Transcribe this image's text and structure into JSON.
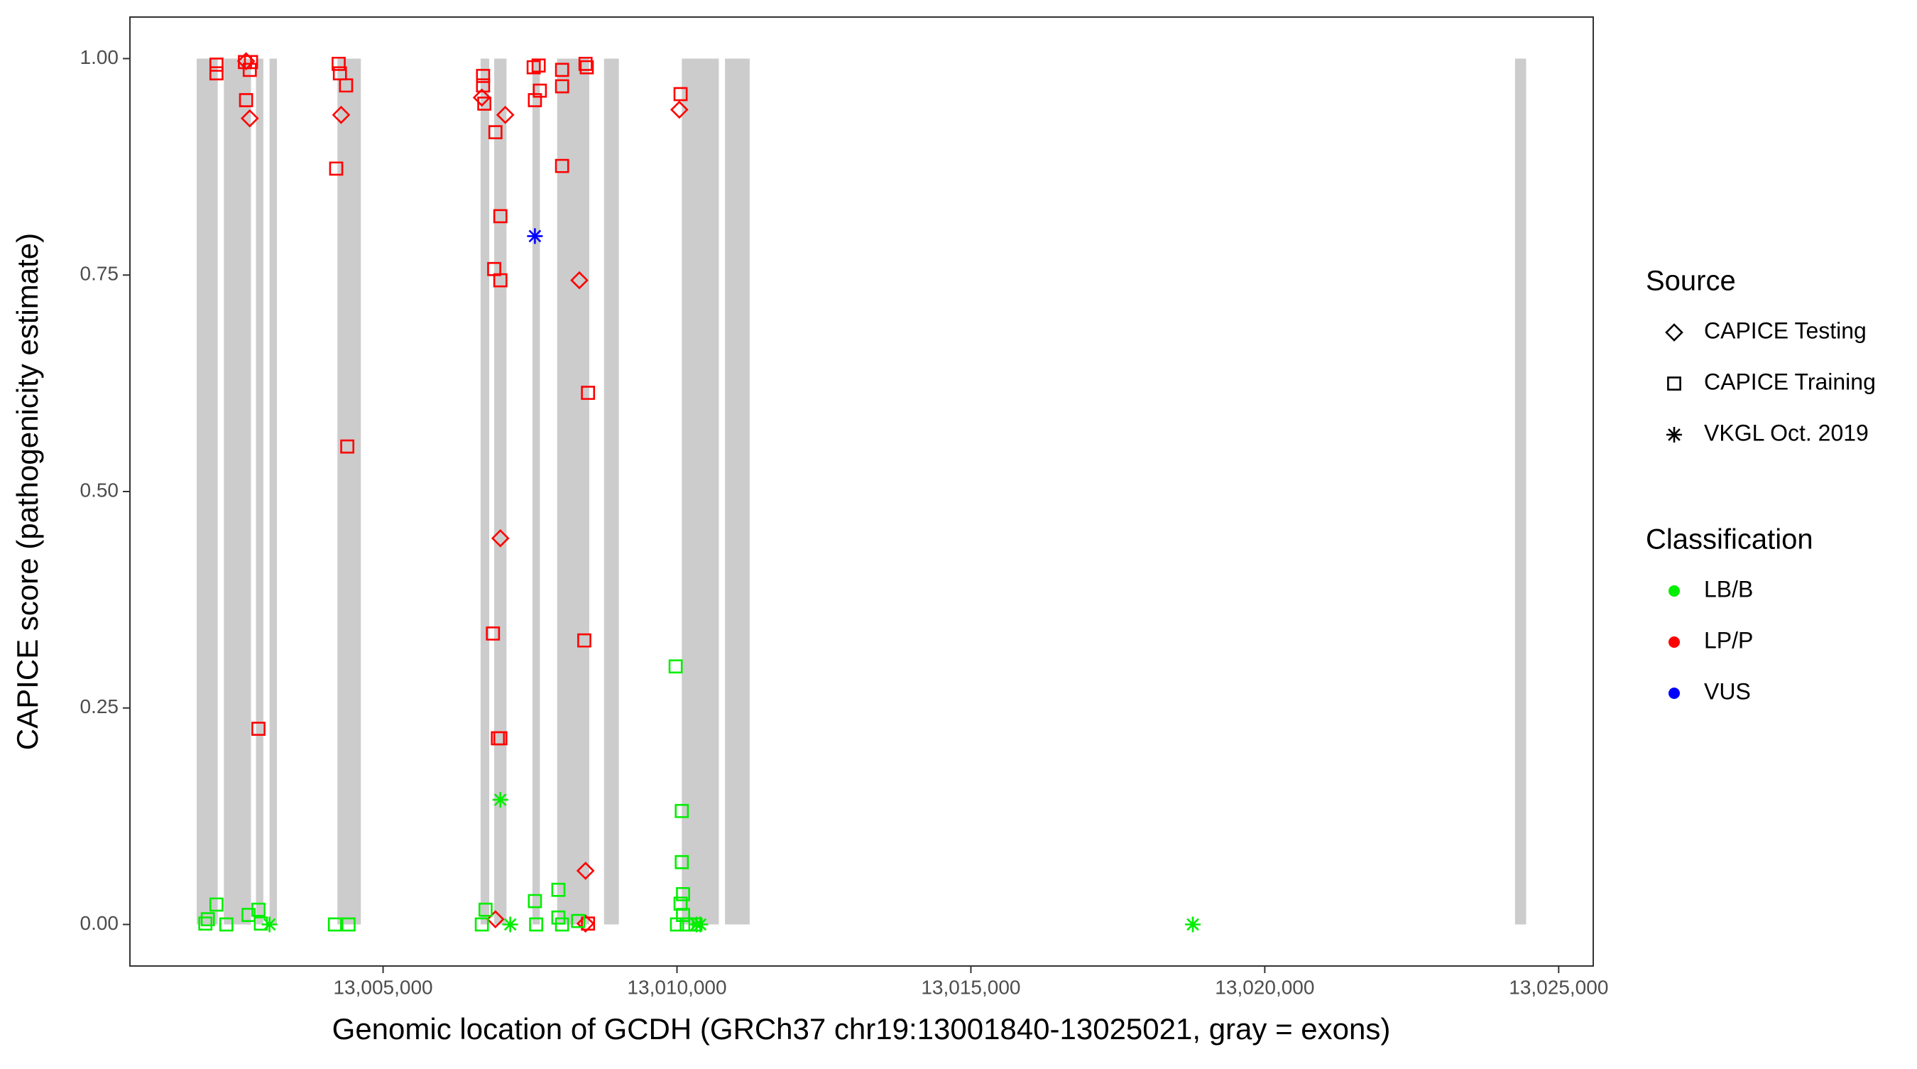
{
  "chart_data": {
    "type": "scatter",
    "xlabel": "Genomic location of GCDH (GRCh37 chr19:13001840-13025021, gray = exons)",
    "ylabel": "CAPICE score (pathogenicity estimate)",
    "xlim": [
      13000693,
      13025588
    ],
    "ylim": [
      -0.048,
      1.048
    ],
    "xticks": [
      {
        "value": 13005000,
        "label": "13,005,000"
      },
      {
        "value": 13010000,
        "label": "13,010,000"
      },
      {
        "value": 13015000,
        "label": "13,015,000"
      },
      {
        "value": 13020000,
        "label": "13,020,000"
      },
      {
        "value": 13025000,
        "label": "13,025,000"
      }
    ],
    "yticks": [
      {
        "value": 0,
        "label": "0.00"
      },
      {
        "value": 0.25,
        "label": "0.25"
      },
      {
        "value": 0.5,
        "label": "0.50"
      },
      {
        "value": 0.75,
        "label": "0.75"
      },
      {
        "value": 1,
        "label": "1.00"
      }
    ],
    "grid": false,
    "exon_color": "#cccccc",
    "exons": [
      [
        13001829,
        13002186
      ],
      [
        13002291,
        13002753
      ],
      [
        13002837,
        13002963
      ],
      [
        13003068,
        13003194
      ],
      [
        13004223,
        13004622
      ],
      [
        13006659,
        13006806
      ],
      [
        13006890,
        13007100
      ],
      [
        13007541,
        13007667
      ],
      [
        13007961,
        13008507
      ],
      [
        13008759,
        13009011
      ],
      [
        13010082,
        13010712
      ],
      [
        13010817,
        13011237
      ],
      [
        13024257,
        13024446
      ]
    ],
    "legends": [
      {
        "title": "Source",
        "items": [
          {
            "name": "CAPICE Testing",
            "shape": "diamond"
          },
          {
            "name": "CAPICE Training",
            "shape": "square"
          },
          {
            "name": "VKGL Oct. 2019",
            "shape": "asterisk"
          }
        ]
      },
      {
        "title": "Classification",
        "items": [
          {
            "name": "LB/B",
            "color": "#00ee00"
          },
          {
            "name": "LP/P",
            "color": "#ff0000"
          },
          {
            "name": "VUS",
            "color": "#0000ff"
          }
        ]
      }
    ],
    "points": {
      "x": [
        13002165,
        13002165,
        13002650,
        13002669,
        13002732,
        13002753,
        13002879,
        13004244,
        13004265,
        13004370,
        13004202,
        13004391,
        13006701,
        13006701,
        13006722,
        13006911,
        13006995,
        13006890,
        13006995,
        13006869,
        13006953,
        13006995,
        13007562,
        13007646,
        13007583,
        13007667,
        13008045,
        13008045,
        13008045,
        13008444,
        13008465,
        13008423,
        13008486,
        13010061,
        13008486,
        13002669,
        13002732,
        13004286,
        13006680,
        13007079,
        13006995,
        13008339,
        13008444,
        13010040,
        13006911,
        13008444,
        13007583,
        13001976,
        13002018,
        13002165,
        13002333,
        13002711,
        13002879,
        13002921,
        13004181,
        13004412,
        13006680,
        13006743,
        13007583,
        13007604,
        13007982,
        13007982,
        13008045,
        13008318,
        13009977,
        13010082,
        13010082,
        13010103,
        13010061,
        13010103,
        13010000,
        13010166,
        13010313,
        13003068,
        13006995,
        13007163,
        13010334,
        13010397,
        13018776
      ],
      "y": [
        0.993,
        0.983,
        0.996,
        0.952,
        0.987,
        0.996,
        0.226,
        0.994,
        0.983,
        0.969,
        0.873,
        0.552,
        0.98,
        0.969,
        0.948,
        0.915,
        0.818,
        0.757,
        0.744,
        0.336,
        0.215,
        0.215,
        0.99,
        0.992,
        0.952,
        0.963,
        0.987,
        0.968,
        0.876,
        0.994,
        0.99,
        0.328,
        0.614,
        0.959,
        0.001,
        0.997,
        0.931,
        0.935,
        0.955,
        0.935,
        0.446,
        0.744,
        0.062,
        0.941,
        0.006,
        0.001,
        0.795,
        0.001,
        0.006,
        0.023,
        0,
        0.011,
        0.017,
        0.001,
        0,
        0,
        0,
        0.017,
        0.027,
        0,
        0.04,
        0.008,
        0,
        0.004,
        0.298,
        0.131,
        0.072,
        0.035,
        0.024,
        0.011,
        0,
        0,
        0,
        0,
        0.144,
        0,
        0,
        0,
        0
      ],
      "source": [
        "CAPICE Training",
        "CAPICE Training",
        "CAPICE Training",
        "CAPICE Training",
        "CAPICE Training",
        "CAPICE Training",
        "CAPICE Training",
        "CAPICE Training",
        "CAPICE Training",
        "CAPICE Training",
        "CAPICE Training",
        "CAPICE Training",
        "CAPICE Training",
        "CAPICE Training",
        "CAPICE Training",
        "CAPICE Training",
        "CAPICE Training",
        "CAPICE Training",
        "CAPICE Training",
        "CAPICE Training",
        "CAPICE Training",
        "CAPICE Training",
        "CAPICE Training",
        "CAPICE Training",
        "CAPICE Training",
        "CAPICE Training",
        "CAPICE Training",
        "CAPICE Training",
        "CAPICE Training",
        "CAPICE Training",
        "CAPICE Training",
        "CAPICE Training",
        "CAPICE Training",
        "CAPICE Training",
        "CAPICE Training",
        "CAPICE Testing",
        "CAPICE Testing",
        "CAPICE Testing",
        "CAPICE Testing",
        "CAPICE Testing",
        "CAPICE Testing",
        "CAPICE Testing",
        "CAPICE Testing",
        "CAPICE Testing",
        "CAPICE Testing",
        "CAPICE Testing",
        "VKGL Oct. 2019",
        "CAPICE Training",
        "CAPICE Training",
        "CAPICE Training",
        "CAPICE Training",
        "CAPICE Training",
        "CAPICE Training",
        "CAPICE Training",
        "CAPICE Training",
        "CAPICE Training",
        "CAPICE Training",
        "CAPICE Training",
        "CAPICE Training",
        "CAPICE Training",
        "CAPICE Training",
        "CAPICE Training",
        "CAPICE Training",
        "CAPICE Training",
        "CAPICE Training",
        "CAPICE Training",
        "CAPICE Training",
        "CAPICE Training",
        "CAPICE Training",
        "CAPICE Training",
        "CAPICE Training",
        "CAPICE Training",
        "CAPICE Training",
        "VKGL Oct. 2019",
        "VKGL Oct. 2019",
        "VKGL Oct. 2019",
        "VKGL Oct. 2019",
        "VKGL Oct. 2019",
        "VKGL Oct. 2019"
      ],
      "classification": [
        "LP/P",
        "LP/P",
        "LP/P",
        "LP/P",
        "LP/P",
        "LP/P",
        "LP/P",
        "LP/P",
        "LP/P",
        "LP/P",
        "LP/P",
        "LP/P",
        "LP/P",
        "LP/P",
        "LP/P",
        "LP/P",
        "LP/P",
        "LP/P",
        "LP/P",
        "LP/P",
        "LP/P",
        "LP/P",
        "LP/P",
        "LP/P",
        "LP/P",
        "LP/P",
        "LP/P",
        "LP/P",
        "LP/P",
        "LP/P",
        "LP/P",
        "LP/P",
        "LP/P",
        "LP/P",
        "LP/P",
        "LP/P",
        "LP/P",
        "LP/P",
        "LP/P",
        "LP/P",
        "LP/P",
        "LP/P",
        "LP/P",
        "LP/P",
        "LP/P",
        "LP/P",
        "VUS",
        "LB/B",
        "LB/B",
        "LB/B",
        "LB/B",
        "LB/B",
        "LB/B",
        "LB/B",
        "LB/B",
        "LB/B",
        "LB/B",
        "LB/B",
        "LB/B",
        "LB/B",
        "LB/B",
        "LB/B",
        "LB/B",
        "LB/B",
        "LB/B",
        "LB/B",
        "LB/B",
        "LB/B",
        "LB/B",
        "LB/B",
        "LB/B",
        "LB/B",
        "LB/B",
        "LB/B",
        "LB/B",
        "LB/B",
        "LB/B",
        "LB/B",
        "LB/B"
      ]
    }
  }
}
